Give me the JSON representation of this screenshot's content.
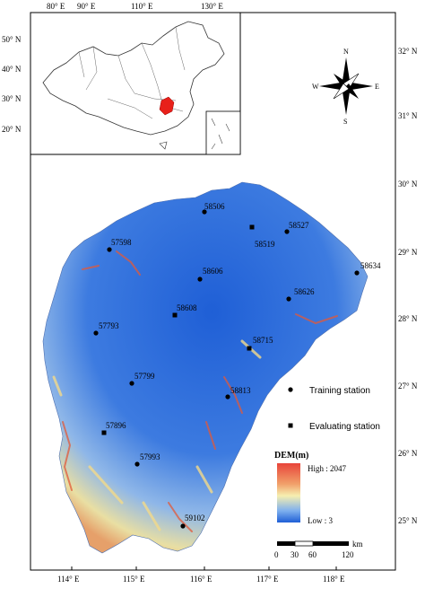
{
  "main_map": {
    "top_ticks": [
      "80° E",
      "90° E",
      "110° E",
      "130° E"
    ],
    "bottom_ticks": [
      "114° E",
      "115° E",
      "116° E",
      "117° E",
      "118° E"
    ],
    "right_ticks": [
      "32° N",
      "31° N",
      "30° N",
      "29° N",
      "28° N",
      "27° N",
      "26° N",
      "25° N"
    ],
    "left_inset_ticks": [
      "50° N",
      "40° N",
      "30° N",
      "20° N"
    ]
  },
  "north_arrow": {
    "n": "N",
    "s": "S",
    "e": "E",
    "w": "W"
  },
  "legend": {
    "training_label": "Training station",
    "evaluating_label": "Evaluating station",
    "dem_title": "DEM(m)",
    "high_label": "High : 2047",
    "low_label": "Low : 3",
    "colors": {
      "high": "#e8443a",
      "mid": "#f6efb0",
      "low": "#1f5fd6"
    }
  },
  "scale_bar": {
    "labels": [
      "0",
      "30",
      "60",
      "120"
    ],
    "unit": "km"
  },
  "stations": [
    {
      "id": "58506",
      "type": "training"
    },
    {
      "id": "58527",
      "type": "training"
    },
    {
      "id": "57598",
      "type": "training"
    },
    {
      "id": "58519",
      "type": "evaluating"
    },
    {
      "id": "58606",
      "type": "training"
    },
    {
      "id": "58634",
      "type": "training"
    },
    {
      "id": "58626",
      "type": "training"
    },
    {
      "id": "58608",
      "type": "evaluating"
    },
    {
      "id": "57793",
      "type": "training"
    },
    {
      "id": "58715",
      "type": "evaluating"
    },
    {
      "id": "57799",
      "type": "training"
    },
    {
      "id": "58813",
      "type": "training"
    },
    {
      "id": "57896",
      "type": "evaluating"
    },
    {
      "id": "57993",
      "type": "training"
    },
    {
      "id": "59102",
      "type": "training"
    }
  ]
}
